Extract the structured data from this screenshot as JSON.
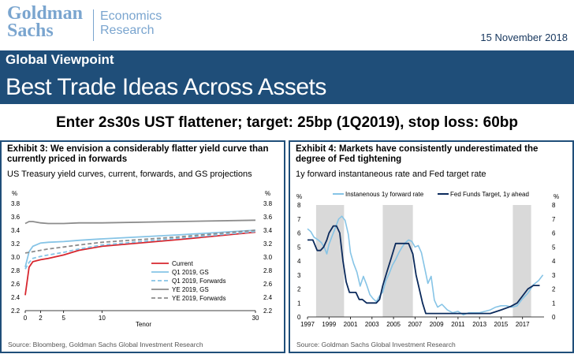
{
  "header": {
    "logo_line1": "Goldman",
    "logo_line2": "Sachs",
    "dept_line1": "Economics",
    "dept_line2": "Research",
    "date": "15 November 2018"
  },
  "band": {
    "kicker": "Global Viewpoint",
    "title": "Best Trade Ideas Across Assets"
  },
  "headline": "Enter 2s30s UST flattener; target: 25bp (1Q2019), stop loss: 60bp",
  "colors": {
    "navy": "#1f4e79",
    "red": "#d7262e",
    "light_blue": "#86c4e6",
    "gray": "#8c8c8c",
    "shade": "#d9d9d9",
    "dark_navy": "#0b2a5c"
  },
  "exhibit3": {
    "title": "Exhibit 3: We envision a considerably flatter yield curve than currently priced in forwards",
    "subtitle": "US Treasury yield curves, current, forwards, and GS projections",
    "source": "Source: Bloomberg, Goldman Sachs Global Investment Research",
    "legend": [
      "Current",
      "Q1 2019, GS",
      "Q1 2019, Forwards",
      "YE 2019, GS",
      "YE 2019, Forwards"
    ]
  },
  "exhibit4": {
    "title": "Exhibit 4: Markets have consistently underestimated the degree of Fed tightening",
    "subtitle": "1y forward instantaneous rate and Fed target rate",
    "source": "Source: Goldman Sachs Global Investment Research",
    "legend": [
      "Instanenous 1y forward rate",
      "Fed Funds Target, 1y ahead"
    ]
  },
  "chart_data": [
    {
      "type": "line",
      "xlabel": "Tenor",
      "ylabel": "%",
      "ylabel_right": "%",
      "xlim": [
        0,
        30
      ],
      "ylim": [
        2.2,
        3.8
      ],
      "x_ticks": [
        0,
        2,
        5,
        10,
        30
      ],
      "y_ticks": [
        2.2,
        2.4,
        2.6,
        2.8,
        3.0,
        3.2,
        3.4,
        3.6,
        3.8
      ],
      "grid": false,
      "legend_position": "bottom-right",
      "x": [
        0,
        0.5,
        1,
        2,
        3,
        5,
        7,
        10,
        20,
        30
      ],
      "series": [
        {
          "name": "Current",
          "color": "#d7262e",
          "style": "solid",
          "values": [
            2.43,
            2.85,
            2.93,
            2.96,
            2.98,
            3.03,
            3.1,
            3.16,
            3.26,
            3.37
          ]
        },
        {
          "name": "Q1 2019, GS",
          "color": "#86c4e6",
          "style": "solid",
          "values": [
            2.85,
            3.08,
            3.16,
            3.21,
            3.22,
            3.23,
            3.25,
            3.27,
            3.33,
            3.4
          ]
        },
        {
          "name": "Q1 2019, Forwards",
          "color": "#86c4e6",
          "style": "dashed",
          "values": [
            2.82,
            2.92,
            2.98,
            3.01,
            3.03,
            3.07,
            3.12,
            3.18,
            3.28,
            3.38
          ]
        },
        {
          "name": "YE 2019, GS",
          "color": "#8c8c8c",
          "style": "solid",
          "values": [
            3.5,
            3.53,
            3.53,
            3.51,
            3.5,
            3.5,
            3.51,
            3.51,
            3.53,
            3.55
          ]
        },
        {
          "name": "YE 2019, Forwards",
          "color": "#8c8c8c",
          "style": "dashed",
          "values": [
            3.06,
            3.07,
            3.08,
            3.1,
            3.12,
            3.15,
            3.18,
            3.22,
            3.3,
            3.4
          ]
        }
      ]
    },
    {
      "type": "line",
      "ylabel": "%",
      "ylabel_right": "%",
      "xlim": [
        1997,
        2019
      ],
      "ylim": [
        0,
        8
      ],
      "x_ticks": [
        1997,
        1999,
        2001,
        2003,
        2005,
        2007,
        2009,
        2011,
        2013,
        2015,
        2017
      ],
      "y_ticks": [
        0,
        1,
        2,
        3,
        4,
        5,
        6,
        7,
        8
      ],
      "grid": false,
      "legend_position": "top",
      "shaded_periods": [
        [
          1997.8,
          2000.4
        ],
        [
          2004.0,
          2006.8
        ],
        [
          2016.1,
          2017.8
        ]
      ],
      "series": [
        {
          "name": "Instanenous 1y forward rate",
          "color": "#86c4e6",
          "x": [
            1997.0,
            1997.3,
            1997.6,
            1998.0,
            1998.3,
            1998.6,
            1998.8,
            1999.0,
            1999.3,
            1999.6,
            1999.9,
            2000.2,
            2000.5,
            2000.8,
            2001.0,
            2001.3,
            2001.6,
            2001.9,
            2002.2,
            2002.5,
            2002.8,
            2003.1,
            2003.4,
            2003.7,
            2004.0,
            2004.3,
            2004.6,
            2004.9,
            2005.2,
            2005.5,
            2005.8,
            2006.1,
            2006.4,
            2006.7,
            2007.0,
            2007.3,
            2007.6,
            2007.9,
            2008.2,
            2008.5,
            2008.8,
            2009.1,
            2009.5,
            2010.0,
            2010.5,
            2011.0,
            2011.5,
            2012.0,
            2013.0,
            2013.5,
            2014.0,
            2014.5,
            2015.0,
            2015.5,
            2016.0,
            2016.5,
            2017.0,
            2017.5,
            2018.0,
            2018.5,
            2018.9
          ],
          "values": [
            6.3,
            6.1,
            5.7,
            5.5,
            5.3,
            4.9,
            4.5,
            5.2,
            5.8,
            6.4,
            7.0,
            7.2,
            6.9,
            5.9,
            4.6,
            3.8,
            3.2,
            2.2,
            2.9,
            2.3,
            1.6,
            1.3,
            1.1,
            1.5,
            1.8,
            2.6,
            3.1,
            3.7,
            4.1,
            4.6,
            5.0,
            5.3,
            5.5,
            5.4,
            5.0,
            5.1,
            4.6,
            3.5,
            2.4,
            2.9,
            1.2,
            0.7,
            0.9,
            0.5,
            0.3,
            0.4,
            0.15,
            0.3,
            0.3,
            0.4,
            0.5,
            0.7,
            0.8,
            0.8,
            0.7,
            0.8,
            1.3,
            1.7,
            2.3,
            2.6,
            3.0
          ]
        },
        {
          "name": "Fed Funds Target, 1y ahead",
          "color": "#0b2a5c",
          "x": [
            1997.0,
            1997.5,
            1997.9,
            1998.2,
            1998.5,
            1998.8,
            1999.0,
            1999.4,
            1999.7,
            2000.0,
            2000.3,
            2000.6,
            2000.9,
            2001.2,
            2001.5,
            2001.8,
            2002.1,
            2002.5,
            2003.0,
            2003.4,
            2003.7,
            2004.0,
            2004.4,
            2004.8,
            2005.2,
            2005.6,
            2006.0,
            2006.4,
            2006.8,
            2007.1,
            2007.4,
            2007.7,
            2008.0,
            2008.2,
            2008.5,
            2009.0,
            2010.0,
            2011.0,
            2012.0,
            2013.0,
            2014.0,
            2015.0,
            2015.9,
            2016.5,
            2017.0,
            2017.5,
            2018.0,
            2018.6
          ],
          "values": [
            5.5,
            5.5,
            4.75,
            4.75,
            5.0,
            5.5,
            6.0,
            6.5,
            6.5,
            6.0,
            4.0,
            2.5,
            1.75,
            1.75,
            1.75,
            1.25,
            1.25,
            1.0,
            1.0,
            1.0,
            1.25,
            2.25,
            3.25,
            4.25,
            5.25,
            5.25,
            5.25,
            5.25,
            4.5,
            3.0,
            2.0,
            1.0,
            0.25,
            0.25,
            0.25,
            0.25,
            0.25,
            0.25,
            0.25,
            0.25,
            0.25,
            0.5,
            0.75,
            1.0,
            1.5,
            2.0,
            2.25,
            2.25
          ]
        }
      ]
    }
  ]
}
